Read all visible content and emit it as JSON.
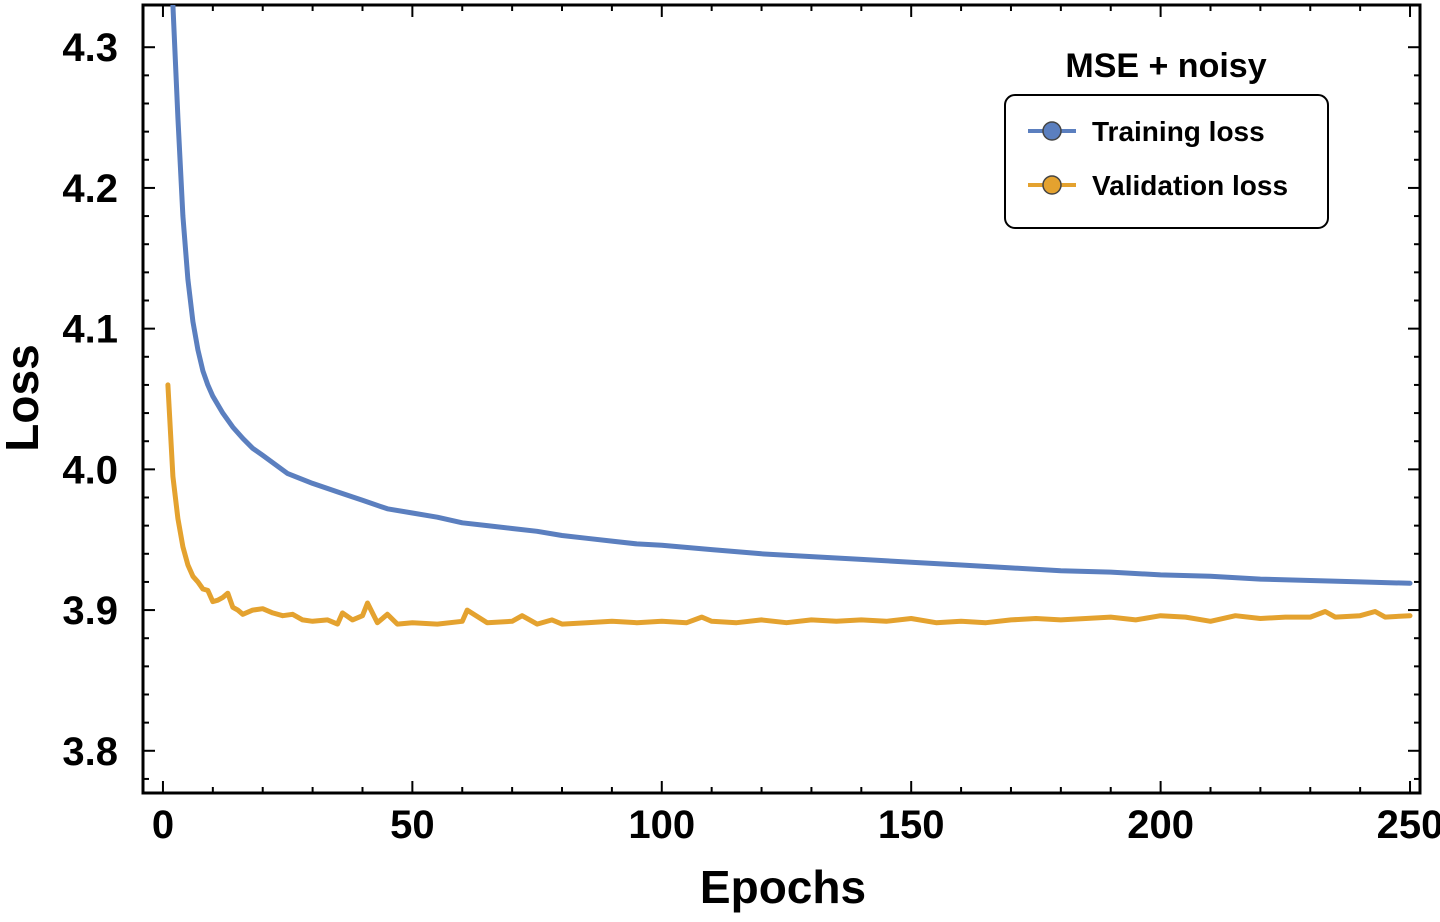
{
  "chart_data": {
    "type": "line",
    "xlabel": "Epochs",
    "ylabel": "Loss",
    "xlim": [
      -4,
      252
    ],
    "ylim": [
      3.77,
      4.33
    ],
    "xticks": [
      0,
      50,
      100,
      150,
      200,
      250
    ],
    "yticks": [
      3.8,
      3.9,
      4.0,
      4.1,
      4.2,
      4.3
    ],
    "ytick_labels": [
      "3.8",
      "3.9",
      "4.0",
      "4.1",
      "4.2",
      "4.3"
    ],
    "grid": false,
    "legend_title": "MSE + noisy",
    "legend_position": "top-right",
    "series": [
      {
        "name": "Training loss",
        "color": "#5b7fbf",
        "x": [
          2,
          3,
          4,
          5,
          6,
          7,
          8,
          9,
          10,
          12,
          14,
          16,
          18,
          20,
          25,
          30,
          35,
          40,
          45,
          50,
          55,
          60,
          65,
          70,
          75,
          80,
          85,
          90,
          95,
          100,
          110,
          120,
          130,
          140,
          150,
          160,
          170,
          180,
          190,
          200,
          210,
          220,
          230,
          240,
          250
        ],
        "values": [
          4.33,
          4.25,
          4.18,
          4.135,
          4.105,
          4.085,
          4.07,
          4.06,
          4.052,
          4.04,
          4.03,
          4.022,
          4.015,
          4.01,
          3.997,
          3.99,
          3.984,
          3.978,
          3.972,
          3.969,
          3.966,
          3.962,
          3.96,
          3.958,
          3.956,
          3.953,
          3.951,
          3.949,
          3.947,
          3.946,
          3.943,
          3.94,
          3.938,
          3.936,
          3.934,
          3.932,
          3.93,
          3.928,
          3.927,
          3.925,
          3.924,
          3.922,
          3.921,
          3.92,
          3.919
        ]
      },
      {
        "name": "Validation loss",
        "color": "#e4a22f",
        "x": [
          1,
          2,
          3,
          4,
          5,
          6,
          7,
          8,
          9,
          10,
          11,
          12,
          13,
          14,
          15,
          16,
          18,
          20,
          22,
          24,
          26,
          28,
          30,
          33,
          35,
          36,
          38,
          40,
          41,
          43,
          45,
          47,
          50,
          55,
          60,
          61,
          65,
          70,
          72,
          75,
          78,
          80,
          85,
          90,
          95,
          100,
          105,
          108,
          110,
          115,
          120,
          125,
          130,
          135,
          140,
          145,
          150,
          155,
          160,
          165,
          170,
          175,
          180,
          185,
          190,
          195,
          200,
          205,
          210,
          215,
          220,
          225,
          230,
          233,
          235,
          240,
          243,
          245,
          250
        ],
        "values": [
          4.06,
          3.995,
          3.965,
          3.945,
          3.932,
          3.924,
          3.92,
          3.915,
          3.914,
          3.906,
          3.907,
          3.909,
          3.912,
          3.902,
          3.9,
          3.897,
          3.9,
          3.901,
          3.898,
          3.896,
          3.897,
          3.893,
          3.892,
          3.893,
          3.89,
          3.898,
          3.893,
          3.896,
          3.905,
          3.891,
          3.897,
          3.89,
          3.891,
          3.89,
          3.892,
          3.9,
          3.891,
          3.892,
          3.896,
          3.89,
          3.893,
          3.89,
          3.891,
          3.892,
          3.891,
          3.892,
          3.891,
          3.895,
          3.892,
          3.891,
          3.893,
          3.891,
          3.893,
          3.892,
          3.893,
          3.892,
          3.894,
          3.891,
          3.892,
          3.891,
          3.893,
          3.894,
          3.893,
          3.894,
          3.895,
          3.893,
          3.896,
          3.895,
          3.892,
          3.896,
          3.894,
          3.895,
          3.895,
          3.899,
          3.895,
          3.896,
          3.899,
          3.895,
          3.896
        ]
      }
    ]
  }
}
